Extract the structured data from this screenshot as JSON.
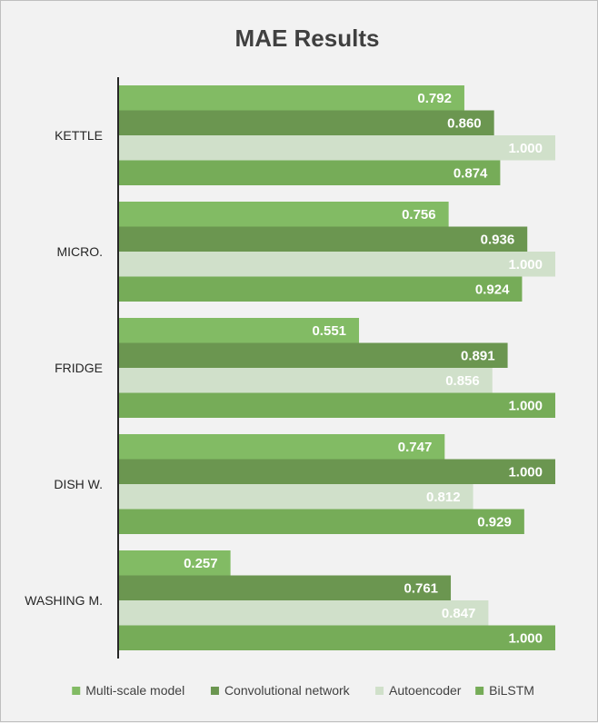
{
  "colors": {
    "multi_scale": "#82bb64",
    "conv": "#6b9650",
    "autoencoder": "#d0e0ca",
    "bilstm": "#76ac58",
    "axis": "#262626"
  },
  "chart_data": {
    "type": "bar",
    "orientation": "horizontal",
    "title": "MAE Results",
    "xlabel": "",
    "ylabel": "",
    "xlim": [
      0,
      1
    ],
    "grid": false,
    "legend_position": "bottom",
    "categories": [
      "KETTLE",
      "MICRO.",
      "FRIDGE",
      "DISH W.",
      "WASHING M."
    ],
    "series": [
      {
        "name": "Multi-scale model",
        "key": "multi_scale",
        "values": [
          0.792,
          0.756,
          0.551,
          0.747,
          0.257
        ],
        "labels": [
          "0.792",
          "0.756",
          "0.551",
          "0.747",
          "0.257"
        ]
      },
      {
        "name": "Convolutional network",
        "key": "conv",
        "values": [
          0.86,
          0.936,
          0.891,
          1.0,
          0.761
        ],
        "labels": [
          "0.860",
          "0.936",
          "0.891",
          "1.000",
          "0.761"
        ]
      },
      {
        "name": "Autoencoder",
        "key": "autoencoder",
        "values": [
          1.0,
          1.0,
          0.856,
          0.812,
          0.847
        ],
        "labels": [
          "1.000",
          "1.000",
          "0.856",
          "0.812",
          "0.847"
        ]
      },
      {
        "name": "BiLSTM",
        "key": "bilstm",
        "values": [
          0.874,
          0.924,
          1.0,
          0.929,
          1.0
        ],
        "labels": [
          "0.874",
          "0.924",
          "1.000",
          "0.929",
          "1.000"
        ]
      }
    ]
  }
}
